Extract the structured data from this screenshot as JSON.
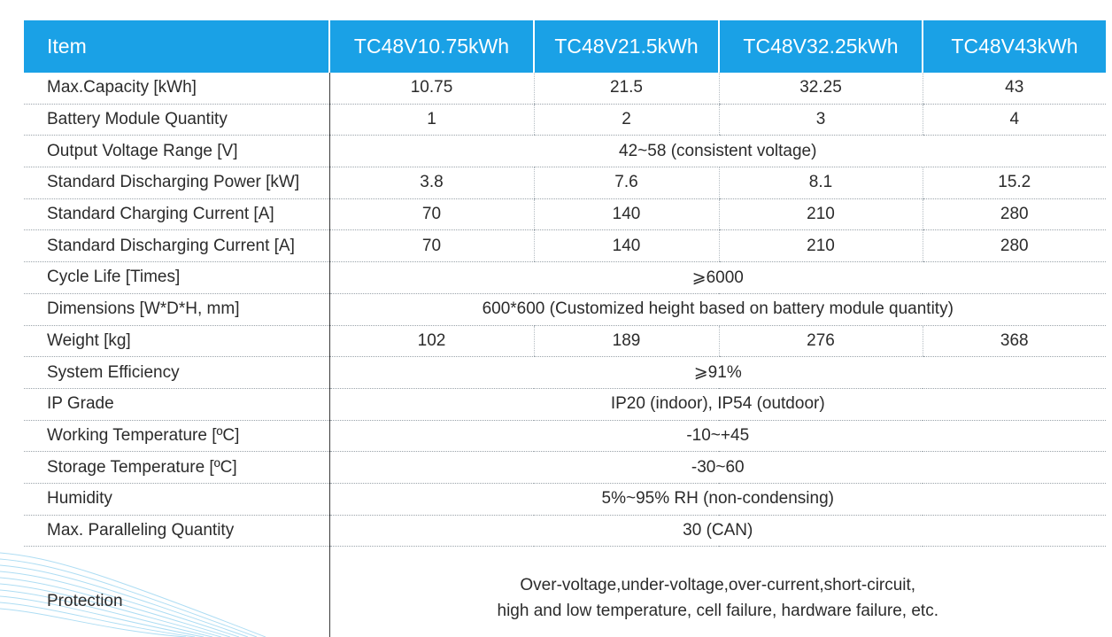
{
  "colors": {
    "header_bg": "#1aa1e6",
    "header_text": "#ffffff",
    "body_text": "#2b2b2b",
    "divider": "#9aa3aa",
    "accent_line": "#1aa1e6"
  },
  "header": {
    "item": "Item",
    "models": [
      "TC48V10.75kWh",
      "TC48V21.5kWh",
      "TC48V32.25kWh",
      "TC48V43kWh"
    ]
  },
  "rows": [
    {
      "label": "Max.Capacity [kWh]",
      "values": [
        "10.75",
        "21.5",
        "32.25",
        "43"
      ]
    },
    {
      "label": "Battery Module Quantity",
      "values": [
        "1",
        "2",
        "3",
        "4"
      ]
    },
    {
      "label": "Output Voltage Range [V]",
      "value": "42~58 (consistent voltage)"
    },
    {
      "label": "Standard Discharging Power [kW]",
      "values": [
        "3.8",
        "7.6",
        "8.1",
        "15.2"
      ]
    },
    {
      "label": "Standard Charging Current [A]",
      "values": [
        "70",
        "140",
        "210",
        "280"
      ]
    },
    {
      "label": "Standard Discharging Current [A]",
      "values": [
        "70",
        "140",
        "210",
        "280"
      ]
    },
    {
      "label": "Cycle Life [Times]",
      "value": "⩾6000"
    },
    {
      "label": "Dimensions [W*D*H, mm]",
      "value": "600*600 (Customized height based on battery module quantity)"
    },
    {
      "label": "Weight [kg]",
      "values": [
        "102",
        "189",
        "276",
        "368"
      ]
    },
    {
      "label": "System Efficiency",
      "value": "⩾91%"
    },
    {
      "label": "IP Grade",
      "value": "IP20 (indoor), IP54 (outdoor)"
    },
    {
      "label": "Working Temperature [ºC]",
      "value": "-10~+45"
    },
    {
      "label": "Storage Temperature [ºC]",
      "value": "-30~60"
    },
    {
      "label": "Humidity",
      "value": "5%~95% RH (non-condensing)"
    },
    {
      "label": "Max. Paralleling Quantity",
      "value": "30 (CAN)"
    }
  ],
  "protection": {
    "label": "Protection",
    "lines": [
      "Over-voltage,under-voltage,over-current,short-circuit,",
      "high and low temperature, cell failure, hardware failure, etc."
    ]
  }
}
